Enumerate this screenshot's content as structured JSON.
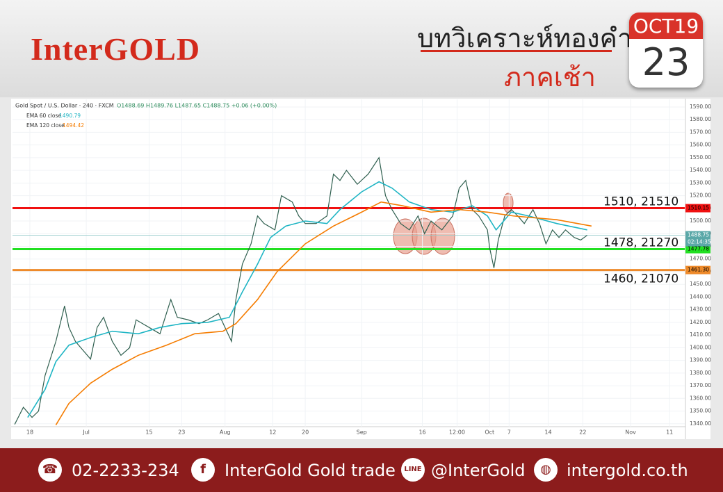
{
  "header": {
    "logo": "InterGOLD",
    "title": "บทวิเคราะห์ทองคำ",
    "subtitle": "ภาคเช้า",
    "calendar": {
      "month": "OCT19",
      "day": "23"
    }
  },
  "chart_data": {
    "type": "line",
    "legend": {
      "symbol": "Gold Spot / U.S. Dollar · 240 · FXCM",
      "ohlc": "O1488.69 H1489.76 L1487.65 C1488.75 +0.06 (+0.00%)"
    },
    "xlim": [
      0,
      310
    ],
    "xticks": [
      {
        "value": 8,
        "label": "18"
      },
      {
        "value": 34,
        "label": "Jul"
      },
      {
        "value": 63,
        "label": "15"
      },
      {
        "value": 78,
        "label": "23"
      },
      {
        "value": 98,
        "label": "Aug"
      },
      {
        "value": 120,
        "label": "12"
      },
      {
        "value": 135,
        "label": "20"
      },
      {
        "value": 161,
        "label": "Sep"
      },
      {
        "value": 189,
        "label": "16"
      },
      {
        "value": 205,
        "label": "12:00"
      },
      {
        "value": 220,
        "label": "Oct"
      },
      {
        "value": 229,
        "label": "7"
      },
      {
        "value": 247,
        "label": "14"
      },
      {
        "value": 263,
        "label": "22"
      },
      {
        "value": 285,
        "label": "Nov"
      },
      {
        "value": 303,
        "label": "11"
      }
    ],
    "ylim": [
      1330,
      1596
    ],
    "yticks": [
      {
        "value": 1340,
        "label": "1340.00"
      },
      {
        "value": 1350,
        "label": "1350.00"
      },
      {
        "value": 1360,
        "label": "1360.00"
      },
      {
        "value": 1370,
        "label": "1370.00"
      },
      {
        "value": 1380,
        "label": "1380.00"
      },
      {
        "value": 1390,
        "label": "1390.00"
      },
      {
        "value": 1400,
        "label": "1400.00"
      },
      {
        "value": 1410,
        "label": "1410.00"
      },
      {
        "value": 1420,
        "label": "1420.00"
      },
      {
        "value": 1430,
        "label": "1430.00"
      },
      {
        "value": 1440,
        "label": "1440.00"
      },
      {
        "value": 1450,
        "label": "1450.00"
      },
      {
        "value": 1460,
        "label": "1460.00"
      },
      {
        "value": 1470,
        "label": "1470.00"
      },
      {
        "value": 1480,
        "label": "1480.00"
      },
      {
        "value": 1490,
        "label": "1490.00"
      },
      {
        "value": 1500,
        "label": "1500.00"
      },
      {
        "value": 1510,
        "label": "1510.00"
      },
      {
        "value": 1520,
        "label": "1520.00"
      },
      {
        "value": 1530,
        "label": "1530.00"
      },
      {
        "value": 1540,
        "label": "1540.00"
      },
      {
        "value": 1550,
        "label": "1550.00"
      },
      {
        "value": 1560,
        "label": "1560.00"
      },
      {
        "value": 1570,
        "label": "1570.00"
      },
      {
        "value": 1580,
        "label": "1580.00"
      },
      {
        "value": 1590,
        "label": "1590.00"
      }
    ],
    "grid": true,
    "series": [
      {
        "name": "Gold Spot / U.S. Dollar",
        "color": "#2f5f4f",
        "x": [
          1,
          5,
          9,
          12,
          15,
          20,
          24,
          26,
          29,
          33,
          36,
          39,
          42,
          46,
          50,
          54,
          57,
          60,
          63,
          68,
          73,
          76,
          81,
          86,
          90,
          95,
          98,
          101,
          103,
          106,
          110,
          113,
          116,
          121,
          124,
          129,
          132,
          135,
          140,
          145,
          148,
          151,
          154,
          159,
          164,
          169,
          172,
          175,
          179,
          183,
          187,
          190,
          193,
          198,
          203,
          206,
          209,
          212,
          215,
          219,
          220,
          222,
          224,
          227,
          230,
          233,
          236,
          240,
          243,
          246,
          249,
          252,
          255,
          259,
          262,
          265
        ],
        "values": [
          1339.5,
          1353,
          1345,
          1350,
          1378,
          1405,
          1433,
          1416,
          1405,
          1397,
          1391,
          1416,
          1424,
          1405,
          1394,
          1400,
          1422,
          1419,
          1416,
          1411,
          1438,
          1424,
          1422,
          1419,
          1422,
          1427,
          1416,
          1405,
          1438,
          1466,
          1482,
          1504,
          1498,
          1493,
          1520,
          1515,
          1504,
          1498,
          1498,
          1504,
          1537,
          1532,
          1540,
          1529,
          1537,
          1550,
          1520,
          1509,
          1498,
          1493,
          1504,
          1490,
          1500,
          1493,
          1504,
          1526,
          1532,
          1509,
          1504,
          1493,
          1479,
          1463,
          1485,
          1504,
          1509,
          1504,
          1498,
          1509,
          1498,
          1482,
          1493,
          1487,
          1493,
          1487,
          1485,
          1488.75
        ]
      },
      {
        "name": "EMA 60 close",
        "value_text": "1490.79",
        "color": "#1fb5c4",
        "x": [
          7,
          15,
          20,
          26,
          36,
          46,
          58,
          68,
          78,
          90,
          100,
          106,
          113,
          119,
          126,
          135,
          145,
          151,
          161,
          169,
          175,
          183,
          193,
          203,
          212,
          219,
          223,
          230,
          238,
          251,
          265
        ],
        "values": [
          1345,
          1367,
          1389,
          1402,
          1408,
          1413,
          1411,
          1416,
          1419,
          1420,
          1424,
          1444,
          1466,
          1487,
          1496,
          1500,
          1498,
          1509,
          1523,
          1531,
          1526,
          1515,
          1509,
          1507,
          1512,
          1504,
          1493,
          1507,
          1504,
          1498,
          1493
        ]
      },
      {
        "name": "EMA 120 close",
        "value_text": "1494.42",
        "color": "#f57c00",
        "x": [
          20,
          26,
          36,
          46,
          58,
          71,
          84,
          97,
          103,
          113,
          122,
          135,
          148,
          161,
          170,
          180,
          193,
          206,
          219,
          231,
          251,
          267
        ],
        "values": [
          1339,
          1356,
          1372,
          1383,
          1394,
          1402,
          1411,
          1413,
          1419,
          1438,
          1460,
          1482,
          1496,
          1507,
          1515,
          1512,
          1507,
          1509,
          1507,
          1504,
          1501,
          1496
        ]
      }
    ],
    "current": {
      "value": 1488.75,
      "label": "1488.75",
      "countdown": "02:14:35",
      "color": "#5aa8a8"
    },
    "levels": [
      {
        "value": 1510.15,
        "label": "1510.15",
        "note": "1510, 21510",
        "color": "#f01010"
      },
      {
        "value": 1477.78,
        "label": "1477.78",
        "note": "1478, 21270",
        "color": "#22e022"
      },
      {
        "value": 1461.3,
        "label": "1461.30",
        "note": "1460, 21070",
        "color": "#ee8a2a"
      }
    ]
  },
  "footer": {
    "phone": "02-2233-234",
    "facebook": "InterGold Gold trade",
    "line": "@InterGold",
    "website": "intergold.co.th"
  }
}
